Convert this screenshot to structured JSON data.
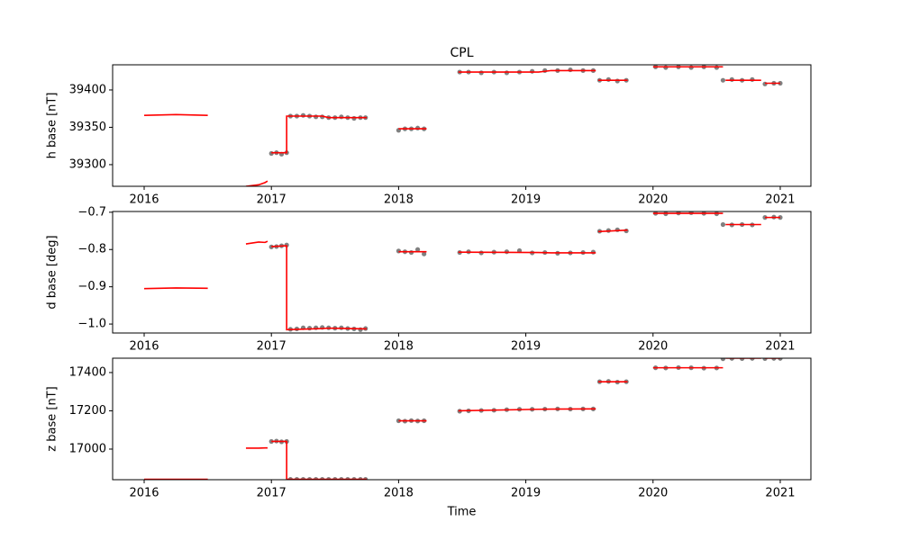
{
  "chart_data": [
    {
      "type": "line",
      "title": "CPL",
      "ylabel": "h base [nT]",
      "xlim": [
        2015.752,
        2021.241
      ],
      "xticks": [
        2016,
        2017,
        2018,
        2019,
        2020,
        2021
      ],
      "ylim": [
        39271,
        39433.7
      ],
      "yticks": [
        39300,
        39350,
        39400
      ],
      "series": [
        {
          "color": "#808080",
          "marker": "o",
          "x": [
            2017.0,
            2017.04,
            2017.08,
            2017.12,
            2017.15,
            2017.2,
            2017.25,
            2017.3,
            2017.35,
            2017.4,
            2017.45,
            2017.5,
            2017.55,
            2017.6,
            2017.65,
            2017.7,
            2017.74,
            2018.0,
            2018.05,
            2018.1,
            2018.15,
            2018.2,
            2018.48,
            2018.55,
            2018.65,
            2018.75,
            2018.85,
            2018.95,
            2019.05,
            2019.15,
            2019.25,
            2019.35,
            2019.45,
            2019.53,
            2019.58,
            2019.65,
            2019.72,
            2019.79,
            2020.02,
            2020.1,
            2020.2,
            2020.3,
            2020.4,
            2020.5,
            2020.55,
            2020.62,
            2020.7,
            2020.78,
            2020.88,
            2020.95,
            2021.0
          ],
          "values": [
            39315,
            39316,
            39314,
            39316,
            39365,
            39365,
            39366,
            39365,
            39364,
            39364,
            39363,
            39363,
            39364,
            39363,
            39362,
            39363,
            39363,
            39346,
            39348,
            39348,
            39349,
            39348,
            39424,
            39424,
            39423,
            39424,
            39423,
            39424,
            39425,
            39426,
            39426,
            39427,
            39426,
            39426,
            39413,
            39414,
            39412,
            39413,
            39431,
            39430,
            39431,
            39430,
            39431,
            39430,
            39413,
            39414,
            39413,
            39414,
            39408,
            39409,
            39409
          ]
        },
        {
          "color": "#ff0000",
          "x": [
            2016.0,
            2016.25,
            2016.5,
            2016.65,
            2016.8,
            2016.9,
            2016.95,
            2016.97,
            2016.985,
            2017.0,
            2017.12,
            2017.12,
            2017.4,
            2017.45,
            2017.75,
            2017.9,
            2018.0,
            2018.22,
            2018.35,
            2018.47,
            2019.1,
            2019.2,
            2019.55,
            2019.56,
            2019.57,
            2019.8,
            2019.9,
            2020.0,
            2020.55,
            2020.56,
            2020.57,
            2020.85,
            2020.86,
            2020.88,
            2021.0
          ],
          "values": [
            39366,
            39367,
            39366,
            null,
            39271,
            39273,
            39276,
            39278,
            null,
            39316,
            39316,
            39365,
            39365,
            39363,
            39363,
            null,
            39348,
            39348,
            null,
            39424,
            39424,
            39426,
            39426,
            null,
            39413,
            39413,
            null,
            39431,
            39431,
            null,
            39413,
            39413,
            null,
            39409,
            39409
          ]
        }
      ]
    },
    {
      "type": "line",
      "ylabel": "d base [deg]",
      "xlim": [
        2015.752,
        2021.241
      ],
      "xticks": [
        2016,
        2017,
        2018,
        2019,
        2020,
        2021
      ],
      "ylim": [
        -1.024,
        -0.698
      ],
      "yticks": [
        {
          "value": -1.0,
          "label": "−1.0"
        },
        {
          "value": -0.9,
          "label": "−0.9"
        },
        {
          "value": -0.8,
          "label": "−0.8"
        },
        {
          "value": -0.7,
          "label": "−0.7"
        }
      ],
      "series": [
        {
          "color": "#808080",
          "marker": "o",
          "x": [
            2017.0,
            2017.04,
            2017.08,
            2017.12,
            2017.15,
            2017.2,
            2017.25,
            2017.3,
            2017.35,
            2017.4,
            2017.45,
            2017.5,
            2017.55,
            2017.6,
            2017.65,
            2017.7,
            2017.74,
            2018.0,
            2018.05,
            2018.1,
            2018.15,
            2018.2,
            2018.48,
            2018.55,
            2018.65,
            2018.75,
            2018.85,
            2018.95,
            2019.05,
            2019.15,
            2019.25,
            2019.35,
            2019.45,
            2019.53,
            2019.58,
            2019.65,
            2019.72,
            2019.79,
            2020.02,
            2020.1,
            2020.2,
            2020.3,
            2020.4,
            2020.5,
            2020.55,
            2020.62,
            2020.7,
            2020.78,
            2020.88,
            2020.95,
            2021.0
          ],
          "values": [
            -0.793,
            -0.792,
            -0.79,
            -0.788,
            -1.014,
            -1.013,
            -1.01,
            -1.011,
            -1.01,
            -1.009,
            -1.01,
            -1.011,
            -1.01,
            -1.012,
            -1.013,
            -1.015,
            -1.012,
            -0.804,
            -0.806,
            -0.808,
            -0.8,
            -0.812,
            -0.808,
            -0.806,
            -0.809,
            -0.807,
            -0.806,
            -0.803,
            -0.809,
            -0.808,
            -0.81,
            -0.809,
            -0.808,
            -0.807,
            -0.751,
            -0.749,
            -0.747,
            -0.75,
            -0.703,
            -0.704,
            -0.702,
            -0.701,
            -0.703,
            -0.704,
            -0.733,
            -0.734,
            -0.733,
            -0.734,
            -0.714,
            -0.713,
            -0.714
          ]
        },
        {
          "color": "#ff0000",
          "x": [
            2016.0,
            2016.25,
            2016.5,
            2016.65,
            2016.8,
            2016.9,
            2016.95,
            2016.97,
            2016.985,
            2017.0,
            2017.12,
            2017.12,
            2017.4,
            2017.45,
            2017.75,
            2017.9,
            2018.0,
            2018.22,
            2018.35,
            2018.47,
            2019.1,
            2019.2,
            2019.55,
            2019.56,
            2019.57,
            2019.8,
            2019.9,
            2020.0,
            2020.55,
            2020.56,
            2020.57,
            2020.85,
            2020.86,
            2020.88,
            2021.0
          ],
          "values": [
            -0.905,
            -0.903,
            -0.904,
            null,
            -0.785,
            -0.78,
            -0.781,
            -0.778,
            null,
            -0.792,
            -0.79,
            -1.015,
            -1.012,
            -1.011,
            -1.013,
            null,
            -0.806,
            -0.806,
            null,
            -0.807,
            -0.808,
            -0.809,
            -0.809,
            null,
            -0.752,
            -0.748,
            null,
            -0.703,
            -0.703,
            null,
            -0.733,
            -0.733,
            null,
            -0.714,
            -0.714
          ]
        }
      ]
    },
    {
      "type": "line",
      "ylabel": "z base [nT]",
      "xlabel": "Time",
      "xlim": [
        2015.752,
        2021.241
      ],
      "xticks": [
        2016,
        2017,
        2018,
        2019,
        2020,
        2021
      ],
      "ylim": [
        16840,
        17475
      ],
      "yticks": [
        17000,
        17200,
        17400
      ],
      "series": [
        {
          "color": "#808080",
          "marker": "o",
          "x": [
            2017.0,
            2017.04,
            2017.08,
            2017.12,
            2017.15,
            2017.2,
            2017.25,
            2017.3,
            2017.35,
            2017.4,
            2017.45,
            2017.5,
            2017.55,
            2017.6,
            2017.65,
            2017.7,
            2017.74,
            2018.0,
            2018.05,
            2018.1,
            2018.15,
            2018.2,
            2018.48,
            2018.55,
            2018.65,
            2018.75,
            2018.85,
            2018.95,
            2019.05,
            2019.15,
            2019.25,
            2019.35,
            2019.45,
            2019.53,
            2019.58,
            2019.65,
            2019.72,
            2019.79,
            2020.02,
            2020.1,
            2020.2,
            2020.3,
            2020.4,
            2020.5,
            2020.55,
            2020.62,
            2020.7,
            2020.78,
            2020.88,
            2020.95,
            2021.0
          ],
          "values": [
            17040,
            17042,
            17038,
            17040,
            16842,
            16842,
            16842,
            16842,
            16842,
            16842,
            16842,
            16842,
            16842,
            16842,
            16842,
            16842,
            16842,
            17148,
            17146,
            17149,
            17147,
            17148,
            17198,
            17200,
            17202,
            17203,
            17206,
            17208,
            17208,
            17209,
            17210,
            17209,
            17210,
            17210,
            17352,
            17354,
            17350,
            17352,
            17425,
            17424,
            17426,
            17425,
            17423,
            17424,
            17472,
            17474,
            17473,
            17474,
            17473,
            17474,
            17474
          ]
        },
        {
          "color": "#ff0000",
          "x": [
            2016.0,
            2016.25,
            2016.5,
            2016.65,
            2016.8,
            2016.9,
            2016.95,
            2016.97,
            2016.985,
            2017.0,
            2017.12,
            2017.12,
            2017.4,
            2017.45,
            2017.75,
            2017.9,
            2018.0,
            2018.22,
            2018.35,
            2018.47,
            2019.1,
            2019.2,
            2019.55,
            2019.56,
            2019.57,
            2019.8,
            2019.9,
            2020.0,
            2020.55,
            2020.56,
            2020.57,
            2020.85,
            2020.86,
            2020.88,
            2021.0
          ],
          "values": [
            16842,
            16842,
            16842,
            null,
            17005,
            17005,
            17006,
            17006,
            null,
            17040,
            17040,
            16842,
            16842,
            16842,
            16842,
            null,
            17148,
            17148,
            null,
            17200,
            17208,
            17209,
            17210,
            null,
            17352,
            17352,
            null,
            17425,
            17425,
            null,
            17475,
            17475,
            null,
            17475,
            17475
          ]
        }
      ]
    }
  ]
}
